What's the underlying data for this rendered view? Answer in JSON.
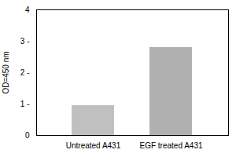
{
  "chart_data": {
    "type": "bar",
    "categories": [
      "Untreated A431",
      "EGF treated A431"
    ],
    "values": [
      0.95,
      2.8
    ],
    "colors": [
      "#c0c0c0",
      "#b0b0b0"
    ],
    "ylabel": "OD=450 nm",
    "ylim": [
      0,
      4
    ],
    "yticks": [
      0,
      {
        "value": 1,
        "label": "1 -"
      },
      {
        "value": 2,
        "label": "2 -"
      },
      {
        "value": 3,
        "label": "3 -"
      },
      4
    ],
    "grid": false
  }
}
